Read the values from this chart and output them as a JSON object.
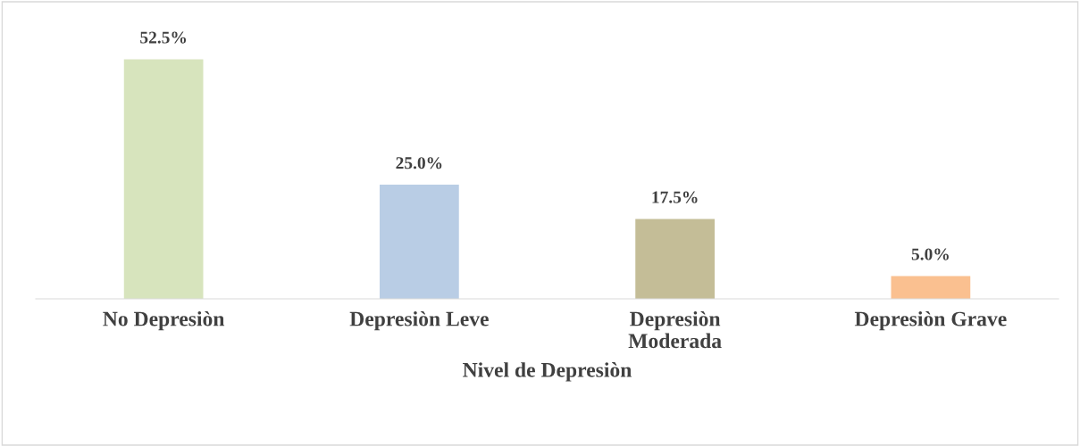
{
  "chart_data": {
    "type": "bar",
    "xlabel": "Nivel de Depresiòn",
    "categories": [
      "No Depresiòn",
      "Depresiòn Leve",
      "Depresiòn\nModerada",
      "Depresiòn Grave"
    ],
    "values": [
      52.5,
      25.0,
      17.5,
      5.0
    ],
    "colors": [
      "#d7e4bd",
      "#b9cde5",
      "#c4bd97",
      "#fac090"
    ],
    "value_labels": [
      "52.5%",
      "25.0%",
      "17.5%",
      "5.0%"
    ],
    "grid": false,
    "legend": false
  }
}
